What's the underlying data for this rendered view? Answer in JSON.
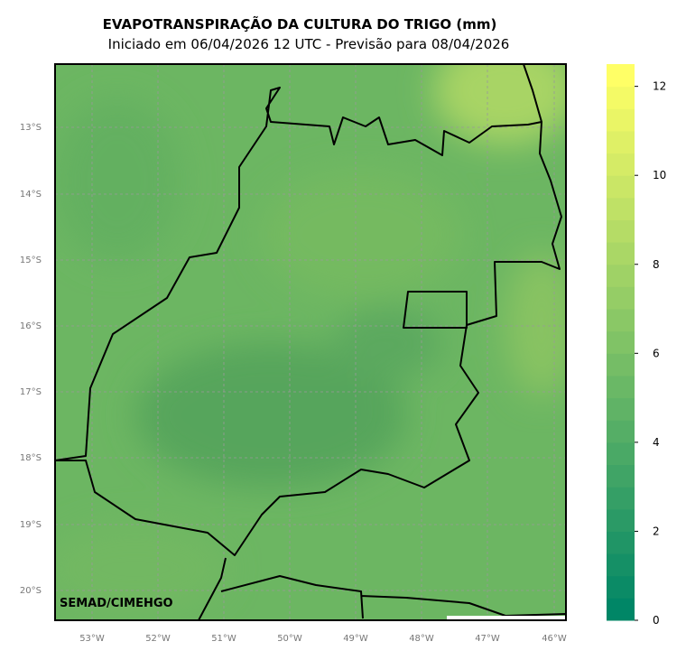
{
  "header": {
    "title": "EVAPOTRANSPIRAÇÃO DA CULTURA DO TRIGO (mm)",
    "subtitle": "Iniciado em 06/04/2026 12 UTC - Previsão para 08/04/2026"
  },
  "map": {
    "lat_labels": [
      "13°S",
      "14°S",
      "15°S",
      "16°S",
      "17°S",
      "18°S",
      "19°S",
      "20°S"
    ],
    "lon_labels": [
      "53°W",
      "52°W",
      "51°W",
      "50°W",
      "49°W",
      "48°W",
      "47°W",
      "46°W"
    ],
    "credit": "SEMAD/CIMEHGO"
  },
  "colorbar": {
    "range": [
      0,
      12.5
    ],
    "ticks": [
      0,
      2,
      4,
      6,
      8,
      10,
      12
    ]
  }
}
